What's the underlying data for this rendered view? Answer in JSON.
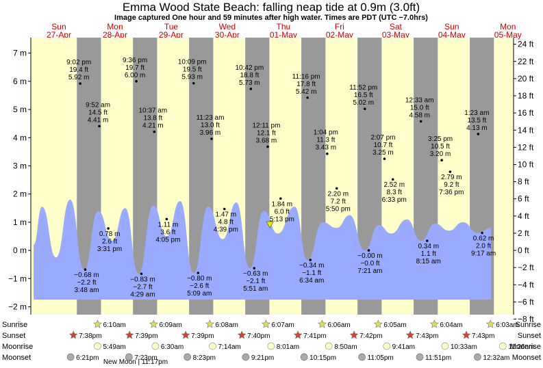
{
  "chart_data": {
    "type": "area",
    "title": "Emma Wood State Beach: falling  neap tide at 0.9m (3.0ft)",
    "subtitle": "Image captured One hour and 59 minutes after high water. Times are PDT (UTC −7.0hrs)",
    "current_level_m": 0.9,
    "days": [
      {
        "dow": "Sun",
        "date": "27-Apr"
      },
      {
        "dow": "Mon",
        "date": "28-Apr"
      },
      {
        "dow": "Tue",
        "date": "29-Apr"
      },
      {
        "dow": "Wed",
        "date": "30-Apr"
      },
      {
        "dow": "Thu",
        "date": "01-May"
      },
      {
        "dow": "Fri",
        "date": "02-May"
      },
      {
        "dow": "Sat",
        "date": "03-May"
      },
      {
        "dow": "Sun",
        "date": "04-May"
      },
      {
        "dow": "Mon",
        "date": "05-May"
      }
    ],
    "y_left": {
      "unit": "m",
      "ticks": [
        {
          "v": 7,
          "label": "7 m"
        },
        {
          "v": 6,
          "label": "6 m"
        },
        {
          "v": 5,
          "label": "5 m"
        },
        {
          "v": 4,
          "label": "4 m"
        },
        {
          "v": 3,
          "label": "3 m"
        },
        {
          "v": 2,
          "label": "2 m"
        },
        {
          "v": 1,
          "label": "1 m"
        },
        {
          "v": 0,
          "label": "0 m"
        },
        {
          "v": -1,
          "label": "−1 m"
        },
        {
          "v": -2,
          "label": "−2 m"
        }
      ]
    },
    "y_right": {
      "unit": "ft",
      "ticks": [
        {
          "v": 24,
          "label": "24 ft"
        },
        {
          "v": 22,
          "label": "22 ft"
        },
        {
          "v": 20,
          "label": "20 ft"
        },
        {
          "v": 18,
          "label": "18 ft"
        },
        {
          "v": 16,
          "label": "16 ft"
        },
        {
          "v": 14,
          "label": "14 ft"
        },
        {
          "v": 12,
          "label": "12 ft"
        },
        {
          "v": 10,
          "label": "10 ft"
        },
        {
          "v": 8,
          "label": "8 ft"
        },
        {
          "v": 6,
          "label": "6 ft"
        },
        {
          "v": 4,
          "label": "4 ft"
        },
        {
          "v": 2,
          "label": "2 ft"
        },
        {
          "v": 0,
          "label": "0 ft"
        },
        {
          "v": -2,
          "label": "−2 ft"
        },
        {
          "v": -4,
          "label": "−4 ft"
        },
        {
          "v": -6,
          "label": "−6 ft"
        },
        {
          "v": -8,
          "label": "−8 ft"
        }
      ]
    },
    "ylim_m": [
      -2.28,
      7.55
    ],
    "tide_curve": [
      {
        "day": 0.05,
        "m": 0.2
      },
      {
        "day": 0.2,
        "m": 1.55
      },
      {
        "day": 0.45,
        "m": -0.25
      },
      {
        "day": 0.7,
        "m": 1.8
      },
      {
        "day": 0.95,
        "m": -0.68
      },
      {
        "day": 1.2,
        "m": 1.4
      },
      {
        "day": 1.45,
        "m": 0.35
      },
      {
        "day": 1.68,
        "m": 1.5
      },
      {
        "day": 1.92,
        "m": -0.83
      },
      {
        "day": 2.18,
        "m": 1.6
      },
      {
        "day": 2.42,
        "m": 0.5
      },
      {
        "day": 2.66,
        "m": 1.75
      },
      {
        "day": 2.9,
        "m": -0.8
      },
      {
        "day": 3.16,
        "m": 1.55
      },
      {
        "day": 3.42,
        "m": 0.4
      },
      {
        "day": 3.66,
        "m": 1.7
      },
      {
        "day": 3.9,
        "m": -0.63
      },
      {
        "day": 4.15,
        "m": 1.4
      },
      {
        "day": 4.4,
        "m": 0.6
      },
      {
        "day": 4.7,
        "m": 1.55
      },
      {
        "day": 4.93,
        "m": -0.34
      },
      {
        "day": 5.2,
        "m": 1.0
      },
      {
        "day": 5.45,
        "m": 0.8
      },
      {
        "day": 5.68,
        "m": 1.25
      },
      {
        "day": 5.95,
        "m": 0.0
      },
      {
        "day": 6.2,
        "m": 0.9
      },
      {
        "day": 6.42,
        "m": 0.6
      },
      {
        "day": 6.7,
        "m": 1.1
      },
      {
        "day": 6.95,
        "m": 0.34
      },
      {
        "day": 7.2,
        "m": 0.95
      },
      {
        "day": 7.45,
        "m": 0.7
      },
      {
        "day": 7.7,
        "m": 1.0
      },
      {
        "day": 7.96,
        "m": 0.62
      },
      {
        "day": 8.2,
        "m": 0.8
      }
    ],
    "night_bands": [
      {
        "from": 0.82,
        "to": 1.25
      },
      {
        "from": 1.82,
        "to": 2.25
      },
      {
        "from": 2.82,
        "to": 3.25
      },
      {
        "from": 3.82,
        "to": 4.25
      },
      {
        "from": 4.82,
        "to": 5.25
      },
      {
        "from": 5.82,
        "to": 6.25
      },
      {
        "from": 6.82,
        "to": 7.25
      },
      {
        "from": 7.82,
        "to": 8.25
      }
    ],
    "extremes": [
      {
        "day": 0.88,
        "m": 5.92,
        "lines": [
          "9:02 pm",
          "19.4 ft",
          "5.92 m"
        ],
        "anchor": "above"
      },
      {
        "day": 0.97,
        "m": -0.68,
        "lines": [
          "−0.68 m",
          "−2.2 ft",
          "3:48 am"
        ],
        "anchor": "below"
      },
      {
        "day": 1.22,
        "m": 4.41,
        "lines": [
          "9:52 am",
          "14.5 ft",
          "4.41 m"
        ],
        "anchor": "above"
      },
      {
        "day": 1.38,
        "m": 0.78,
        "lines": [
          "0.78 m",
          "2.6 ft",
          "3:31 pm"
        ],
        "anchor": "below"
      },
      {
        "day": 1.88,
        "m": 6.0,
        "lines": [
          "9:36 pm",
          "19.7 ft",
          "6.00 m"
        ],
        "anchor": "above"
      },
      {
        "day": 1.97,
        "m": -0.83,
        "lines": [
          "−0.83 m",
          "−2.7 ft",
          "4:29 am"
        ],
        "anchor": "below"
      },
      {
        "day": 2.2,
        "m": 4.21,
        "lines": [
          "10:37 am",
          "13.8 ft",
          "4.21 m"
        ],
        "anchor": "above"
      },
      {
        "day": 2.42,
        "m": 1.11,
        "lines": [
          "1.11 m",
          "3.6 ft",
          "4:05 pm"
        ],
        "anchor": "below"
      },
      {
        "day": 2.9,
        "m": 5.93,
        "lines": [
          "10:09 pm",
          "19.5 ft",
          "5.93 m"
        ],
        "anchor": "above"
      },
      {
        "day": 2.98,
        "m": -0.8,
        "lines": [
          "−0.80 m",
          "−2.6 ft",
          "5:09 am"
        ],
        "anchor": "below"
      },
      {
        "day": 3.22,
        "m": 3.96,
        "lines": [
          "11:23 am",
          "13.0 ft",
          "3.96 m"
        ],
        "anchor": "above"
      },
      {
        "day": 3.45,
        "m": 1.47,
        "lines": [
          "1.47 m",
          "4.8 ft",
          "4:39 pm"
        ],
        "anchor": "below"
      },
      {
        "day": 3.92,
        "m": 5.73,
        "lines": [
          "10:42 pm",
          "18.8 ft",
          "5.73 m"
        ],
        "anchor": "above"
      },
      {
        "day": 3.98,
        "m": -0.63,
        "lines": [
          "−0.63 m",
          "−2.1 ft",
          "5:51 am"
        ],
        "anchor": "below"
      },
      {
        "day": 4.22,
        "m": 3.68,
        "lines": [
          "12:11 pm",
          "12.1 ft",
          "3.68 m"
        ],
        "anchor": "above"
      },
      {
        "day": 4.45,
        "m": 1.84,
        "lines": [
          "1.84 m",
          "6.0 ft",
          "5:13 pm"
        ],
        "anchor": "below"
      },
      {
        "day": 4.93,
        "m": 5.42,
        "lines": [
          "11:16 pm",
          "17.8 ft",
          "5.42 m"
        ],
        "anchor": "above"
      },
      {
        "day": 4.98,
        "m": -0.34,
        "lines": [
          "−0.34 m",
          "−1.1 ft",
          "6:34 am"
        ],
        "anchor": "below"
      },
      {
        "day": 5.28,
        "m": 3.43,
        "lines": [
          "1:04 pm",
          "11.3 ft",
          "3.43 m"
        ],
        "anchor": "above"
      },
      {
        "day": 5.45,
        "m": 2.2,
        "lines": [
          "2.20 m",
          "7.2 ft",
          "5:50 pm"
        ],
        "anchor": "below"
      },
      {
        "day": 5.95,
        "m": 5.02,
        "lines": [
          "11:52 pm",
          "16.5 ft",
          "5.02 m"
        ],
        "anchor": "above"
      },
      {
        "day": 6.02,
        "m": 0.0,
        "lines": [
          "−0.00 m",
          "−0.0 ft",
          "7:21 am"
        ],
        "anchor": "below"
      },
      {
        "day": 6.3,
        "m": 3.25,
        "lines": [
          "2:07 pm",
          "10.7 ft",
          "3.25 m"
        ],
        "anchor": "above"
      },
      {
        "day": 6.45,
        "m": 2.52,
        "lines": [
          "2.52 m",
          "8.3 ft",
          "6:33 pm"
        ],
        "anchor": "below"
      },
      {
        "day": 6.95,
        "m": 4.58,
        "lines": [
          "12:33 am",
          "15.0 ft",
          "4.58 m"
        ],
        "anchor": "above"
      },
      {
        "day": 7.06,
        "m": 0.34,
        "lines": [
          "0.34 m",
          "1.1 ft",
          "8:15 am"
        ],
        "anchor": "below"
      },
      {
        "day": 7.32,
        "m": 3.2,
        "lines": [
          "3:25 pm",
          "10.5 ft",
          "3.20 m"
        ],
        "anchor": "above"
      },
      {
        "day": 7.47,
        "m": 2.79,
        "lines": [
          "2.79 m",
          "9.2 ft",
          "7:36 pm"
        ],
        "anchor": "below"
      },
      {
        "day": 7.97,
        "m": 4.13,
        "lines": [
          "1:23 am",
          "13.5 ft",
          "4.13 m"
        ],
        "anchor": "above"
      },
      {
        "day": 8.04,
        "m": 0.62,
        "lines": [
          "0.62 m",
          "2.0 ft",
          "9:17 am"
        ],
        "anchor": "below"
      }
    ],
    "now_marker_day": 4.26,
    "rows": [
      {
        "label": "Sunrise",
        "events": [
          {
            "day": 1.25,
            "time": "6:10am"
          },
          {
            "day": 2.25,
            "time": "6:09am"
          },
          {
            "day": 3.25,
            "time": "6:08am"
          },
          {
            "day": 4.25,
            "time": "6:07am"
          },
          {
            "day": 5.25,
            "time": "6:06am"
          },
          {
            "day": 6.25,
            "time": "6:05am"
          },
          {
            "day": 7.25,
            "time": "6:04am"
          },
          {
            "day": 8.25,
            "time": "6:03am"
          }
        ]
      },
      {
        "label": "Sunset",
        "events": [
          {
            "day": 0.82,
            "time": "7:38pm"
          },
          {
            "day": 1.82,
            "time": "7:39pm"
          },
          {
            "day": 2.82,
            "time": "7:39pm"
          },
          {
            "day": 3.82,
            "time": "7:40pm"
          },
          {
            "day": 4.82,
            "time": "7:41pm"
          },
          {
            "day": 5.82,
            "time": "7:42pm"
          },
          {
            "day": 6.82,
            "time": "7:43pm"
          },
          {
            "day": 7.82,
            "time": "7:43pm"
          }
        ]
      },
      {
        "label": "Moonrise",
        "events": [
          {
            "day": 1.25,
            "time": "5:49am"
          },
          {
            "day": 2.28,
            "time": "6:30am"
          },
          {
            "day": 3.3,
            "time": "7:14am"
          },
          {
            "day": 4.34,
            "time": "8:01am"
          },
          {
            "day": 5.37,
            "time": "8:50am"
          },
          {
            "day": 6.4,
            "time": "9:41am"
          },
          {
            "day": 7.44,
            "time": "10:33am"
          },
          {
            "day": 8.47,
            "time": "11:26am"
          }
        ]
      },
      {
        "label": "Moonset",
        "events": [
          {
            "day": 0.77,
            "time": "6:21pm"
          },
          {
            "day": 1.81,
            "time": "7:23pm"
          },
          {
            "day": 2.85,
            "time": "8:23pm"
          },
          {
            "day": 3.89,
            "time": "9:21pm"
          },
          {
            "day": 4.93,
            "time": "10:15pm"
          },
          {
            "day": 5.96,
            "time": "11:05pm"
          },
          {
            "day": 6.99,
            "time": "11:51pm"
          },
          {
            "day": 8.02,
            "time": "12:32am"
          }
        ]
      }
    ],
    "moon_phase_note": "New Moon | 11:17pm",
    "colors": {
      "day_bg": "#ffffcc",
      "night_band": "#999999",
      "tide_fill": "#99aaff",
      "marker": "#eeee00",
      "sun_icon": "#dddd66",
      "sunset_icon": "#cc4433",
      "moon_icon": "#ffffcc",
      "moonset_icon": "#aaaaaa"
    }
  }
}
